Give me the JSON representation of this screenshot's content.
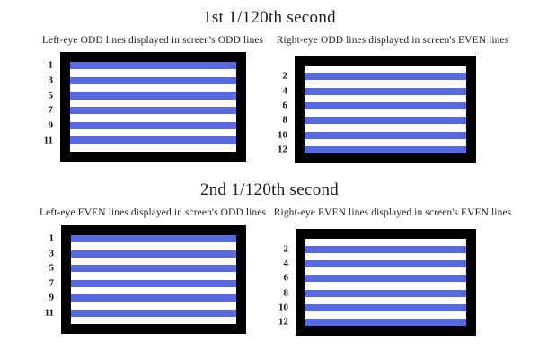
{
  "colors": {
    "stripe_blue": "#5868de",
    "frame_black": "#000000",
    "screen_white": "#ffffff"
  },
  "sections": [
    {
      "title": "1st 1/120th second",
      "panels": [
        {
          "caption": "Left-eye ODD lines displayed in screen's ODD lines",
          "line_count": 12,
          "lit_lines": [
            1,
            3,
            5,
            7,
            9,
            11
          ],
          "line_labels": [
            "1",
            "3",
            "5",
            "7",
            "9",
            "11"
          ]
        },
        {
          "caption": "Right-eye ODD lines displayed in screen's EVEN lines",
          "line_count": 12,
          "lit_lines": [
            2,
            4,
            6,
            8,
            10,
            12
          ],
          "line_labels": [
            "2",
            "4",
            "6",
            "8",
            "10",
            "12"
          ]
        }
      ]
    },
    {
      "title": "2nd 1/120th second",
      "panels": [
        {
          "caption": "Left-eye EVEN lines displayed in screen's ODD lines",
          "line_count": 12,
          "lit_lines": [
            1,
            3,
            5,
            7,
            9,
            11
          ],
          "line_labels": [
            "1",
            "3",
            "5",
            "7",
            "9",
            "11"
          ]
        },
        {
          "caption": "Right-eye EVEN lines displayed in screen's EVEN lines",
          "line_count": 12,
          "lit_lines": [
            2,
            4,
            6,
            8,
            10,
            12
          ],
          "line_labels": [
            "2",
            "4",
            "6",
            "8",
            "10",
            "12"
          ]
        }
      ]
    }
  ]
}
